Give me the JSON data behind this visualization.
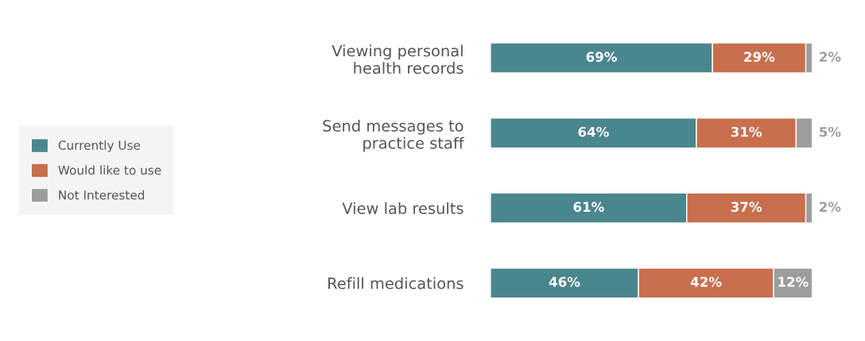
{
  "chart_data": {
    "type": "bar",
    "orientation": "horizontal",
    "stacked": true,
    "legend": "left",
    "grid": false,
    "categories": [
      "Viewing personal\nhealth records",
      "Send messages to\npractice staff",
      "View lab results",
      "Refill medications"
    ],
    "series": [
      {
        "name": "Currently Use",
        "color": "#4a868e",
        "values": [
          69,
          64,
          61,
          46
        ],
        "value_labels": [
          "69%",
          "64%",
          "61%",
          "46%"
        ]
      },
      {
        "name": "Would like to use",
        "color": "#c86f4d",
        "values": [
          29,
          31,
          37,
          42
        ],
        "value_labels": [
          "29%",
          "31%",
          "37%",
          "42%"
        ]
      },
      {
        "name": "Not Interested",
        "color": "#9d9d9d",
        "values": [
          2,
          5,
          2,
          12
        ],
        "value_labels": [
          "2%",
          "5%",
          "2%",
          "12%"
        ]
      }
    ]
  }
}
